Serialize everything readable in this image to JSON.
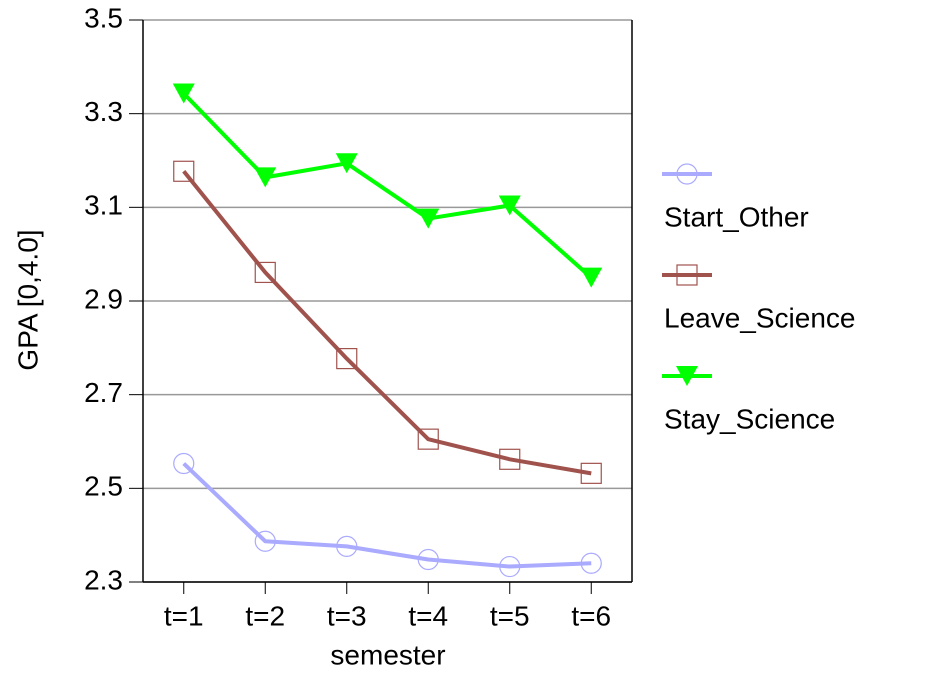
{
  "chart_data": {
    "type": "line",
    "x_label": "semester",
    "y_label": "GPA  [0,4.0]",
    "categories": [
      "t=1",
      "t=2",
      "t=3",
      "t=4",
      "t=5",
      "t=6"
    ],
    "series": [
      {
        "name": "Start_Other",
        "color": "#aaaaff",
        "marker": "circle",
        "values": [
          2.553,
          2.387,
          2.376,
          2.348,
          2.333,
          2.34
        ]
      },
      {
        "name": "Leave_Science",
        "color": "#a0524d",
        "marker": "square",
        "values": [
          3.177,
          2.961,
          2.777,
          2.605,
          2.562,
          2.532
        ]
      },
      {
        "name": "Stay_Science",
        "color": "#00ff00",
        "marker": "triangle-down",
        "values": [
          3.343,
          3.164,
          3.194,
          3.076,
          3.104,
          2.95
        ]
      }
    ],
    "ylim": [
      2.3,
      3.5
    ],
    "yticks": [
      2.3,
      2.5,
      2.7,
      2.9,
      3.1,
      3.3,
      3.5
    ],
    "grid": true,
    "legend": "right"
  }
}
